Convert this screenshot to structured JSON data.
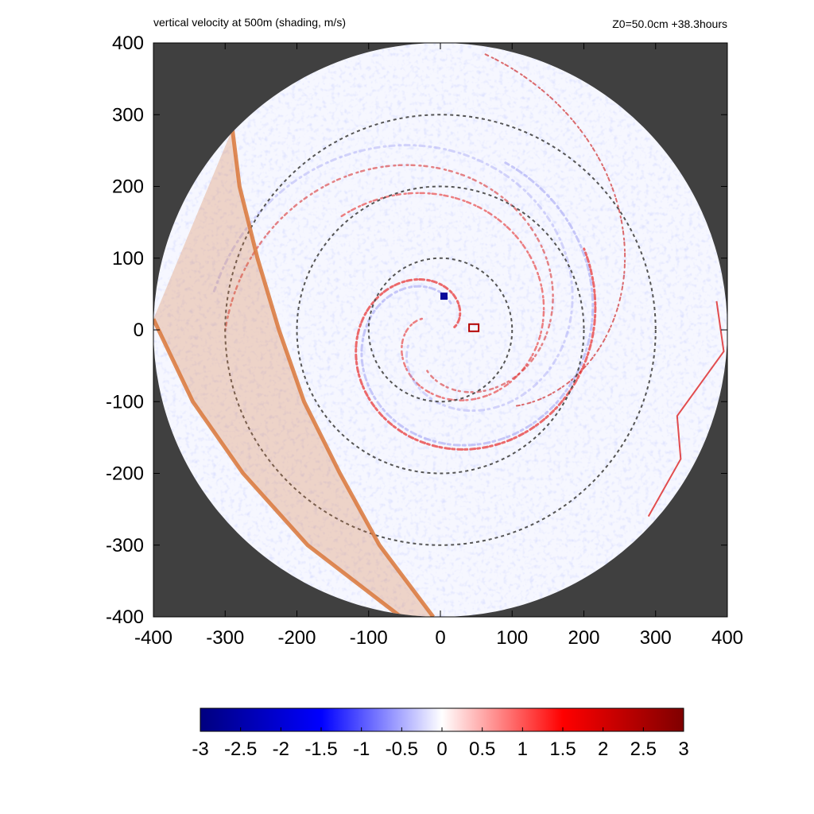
{
  "chart_data": {
    "type": "heatmap",
    "title": "vertical velocity at 500m (shading, m/s)",
    "subtitle": "Z0=50.0cm  +38.3hours",
    "x_ticks": [
      -400,
      -300,
      -200,
      -100,
      0,
      100,
      200,
      300,
      400
    ],
    "y_ticks": [
      -400,
      -300,
      -200,
      -100,
      0,
      100,
      200,
      300,
      400
    ],
    "xlim": [
      -400,
      400
    ],
    "ylim": [
      -400,
      400
    ],
    "domain_radius": 400,
    "range_rings": [
      100,
      200,
      300
    ],
    "colorbar": {
      "min": -3,
      "max": 3,
      "ticks": [
        "-3",
        "-2.5",
        "-2",
        "-1.5",
        "-1",
        "-0.5",
        "0",
        "0.5",
        "1",
        "1.5",
        "2",
        "2.5",
        "3"
      ],
      "colors": [
        "#00007f",
        "#0000ff",
        "#ffffff",
        "#ff0000",
        "#7f0000"
      ]
    },
    "background_color": "#404040",
    "band_color": "#d9773a",
    "band": {
      "left_edge": [
        [
          -290,
          280
        ],
        [
          -280,
          200
        ],
        [
          -255,
          100
        ],
        [
          -225,
          0
        ],
        [
          -190,
          -100
        ],
        [
          -140,
          -200
        ],
        [
          -85,
          -300
        ],
        [
          -10,
          -400
        ]
      ],
      "right_edge": [
        [
          -400,
          15
        ],
        [
          -345,
          -100
        ],
        [
          -275,
          -200
        ],
        [
          -185,
          -300
        ],
        [
          -55,
          -400
        ]
      ]
    }
  }
}
